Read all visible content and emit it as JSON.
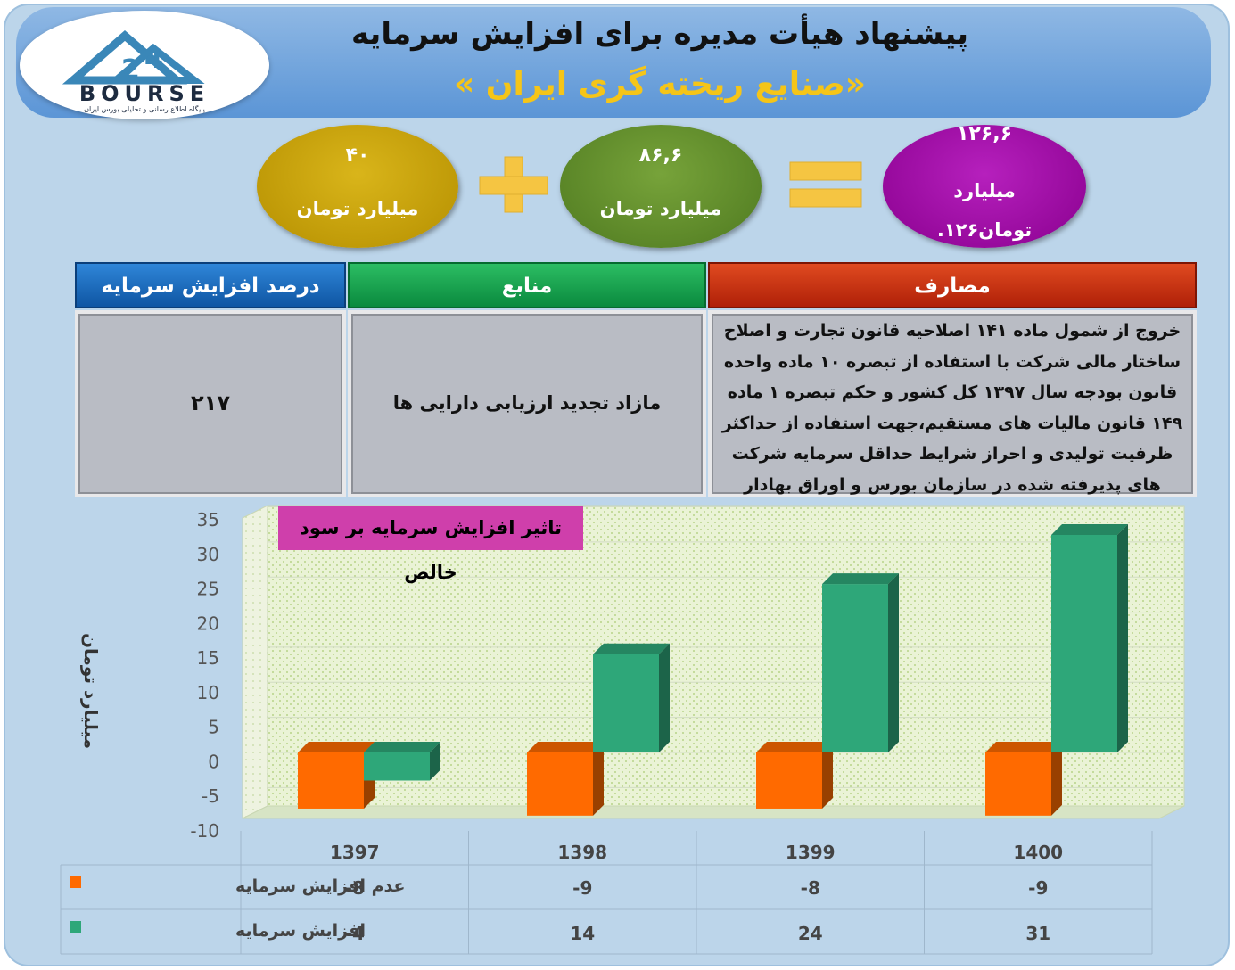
{
  "header": {
    "title": "پیشنهاد هیأت مدیره برای افزایش سرمایه",
    "subtitle": "«صنایع ریخته گری ایران »"
  },
  "logo": {
    "text": "BOURSE",
    "tagline": "پایگاه اطلاع رسانی و تحلیلی بورس ایران"
  },
  "equation": {
    "left": {
      "value": "۴۰",
      "unit": "میلیارد تومان",
      "color": "#c9a000"
    },
    "middle": {
      "value": "۸۶,۶",
      "unit": "میلیارد تومان",
      "color": "#5f8a2a"
    },
    "right": {
      "value": "۱۲۶,۶",
      "unit_line1": "میلیارد",
      "unit_line2": "تومان۱۲۶.",
      "color": "#a000a8"
    },
    "plus_color": "#f5c542",
    "equals_color": "#f5c542"
  },
  "table": {
    "headers": {
      "percent": "درصد افزایش سرمایه",
      "sources": "منابع",
      "uses": "مصارف"
    },
    "header_colors": {
      "percent": "#1666b8",
      "sources": "#11964a",
      "uses": "#c42a0c"
    },
    "percent_value": "۲۱۷",
    "sources_text": "مازاد تجدید ارزیابی دارایی ها",
    "uses_lines": [
      "خروج از شمول ماده ۱۴۱ اصلاحیه قانون تجارت و اصلاح",
      "ساختار مالی شرکت با استفاده از تبصره ۱۰ ماده واحده",
      "قانون بودجه سال ۱۳۹۷ کل کشور و حکم تبصره ۱ ماده",
      "۱۴۹ قانون مالیات های مستقیم،جهت استفاده از حداکثر",
      "ظرفیت تولیدی و احراز شرایط حداقل سرمایه شرکت",
      "های پذیرفته شده در سازمان بورس و اوراق بهادار"
    ]
  },
  "chart_data": {
    "type": "bar",
    "title": "تاثیر افزایش سرمایه بر سود خالص",
    "ylabel": "میلیارد تومان",
    "xlabel": "",
    "categories": [
      "1397",
      "1398",
      "1399",
      "1400"
    ],
    "ylim": [
      -10,
      35
    ],
    "yticks": [
      35,
      30,
      25,
      20,
      15,
      10,
      5,
      0,
      -5,
      -10
    ],
    "series": [
      {
        "name": "عدم افزایش سرمایه",
        "values": [
          -8,
          -9,
          -8,
          -9
        ],
        "color": "#ff6a00"
      },
      {
        "name": "افزایش سرمایه",
        "values": [
          -4,
          14,
          24,
          31
        ],
        "color": "#2ea779"
      }
    ],
    "grid": true,
    "legend": "bottom-table"
  }
}
